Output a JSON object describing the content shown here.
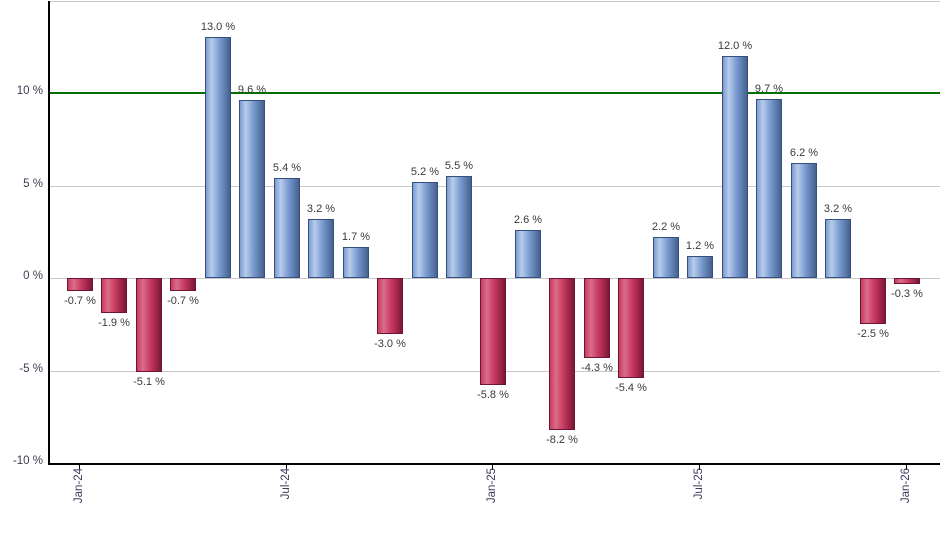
{
  "chart_data": {
    "type": "bar",
    "unit": "%",
    "categories": [
      "Jan-24",
      "Feb-24",
      "Mar-24",
      "Apr-24",
      "May-24",
      "Jun-24",
      "Jul-24",
      "Aug-24",
      "Sep-24",
      "Oct-24",
      "Nov-24",
      "Dec-24",
      "Jan-25",
      "Feb-25",
      "Mar-25",
      "Apr-25",
      "May-25",
      "Jun-25",
      "Jul-25",
      "Aug-25",
      "Sep-25",
      "Oct-25",
      "Nov-25",
      "Dec-25",
      "Jan-26"
    ],
    "values": [
      -0.7,
      -1.9,
      -5.1,
      -0.7,
      13.0,
      9.6,
      5.4,
      3.2,
      1.7,
      -3.0,
      5.2,
      5.5,
      -5.8,
      2.6,
      -8.2,
      -4.3,
      -5.4,
      2.2,
      1.2,
      12.0,
      9.7,
      6.2,
      3.2,
      -2.5,
      -0.3
    ],
    "bar_labels": [
      "-0.7 %",
      "-1.9 %",
      "-5.1 %",
      "-0.7 %",
      "13.0 %",
      "9.6 %",
      "5.4 %",
      "3.2 %",
      "1.7 %",
      "-3.0 %",
      "5.2 %",
      "5.5 %",
      "-5.8 %",
      "2.6 %",
      "-8.2 %",
      "-4.3 %",
      "-5.4 %",
      "2.2 %",
      "1.2 %",
      "12.0 %",
      "9.7 %",
      "6.2 %",
      "3.2 %",
      "-2.5 %",
      "-0.3 %"
    ],
    "ylim": [
      -10,
      14.9
    ],
    "y_ticks": [
      {
        "value": 10,
        "label": "10 %"
      },
      {
        "value": 5,
        "label": "5 %"
      },
      {
        "value": 0,
        "label": "0 %"
      },
      {
        "value": -5,
        "label": "-5 %"
      },
      {
        "value": -10,
        "label": "-10 %"
      }
    ],
    "gridlines": [
      5,
      0,
      -5
    ],
    "threshold_line": {
      "value": 10,
      "color": "#007000"
    },
    "x_ticks": [
      {
        "index": 0,
        "label": "Jan-24"
      },
      {
        "index": 6,
        "label": "Jul-24"
      },
      {
        "index": 12,
        "label": "Jan-25"
      },
      {
        "index": 18,
        "label": "Jul-25"
      },
      {
        "index": 24,
        "label": "Jan-26"
      }
    ],
    "colors": {
      "positive_bar": "#7b9cd2",
      "positive_bar_light": "#b7cce9",
      "positive_bar_dark": "#44618f",
      "positive_border": "#35507f",
      "negative_bar": "#c93a61",
      "negative_bar_light": "#da6d8a",
      "negative_bar_dark": "#7c1737",
      "negative_border": "#6d1531",
      "gridline": "#c8c8c8",
      "axis": "#000000"
    },
    "layout_hints": {
      "grid": "horizontal",
      "legend_position": "none",
      "x_label_rotation": -90,
      "value_labels": "outside-end"
    }
  }
}
